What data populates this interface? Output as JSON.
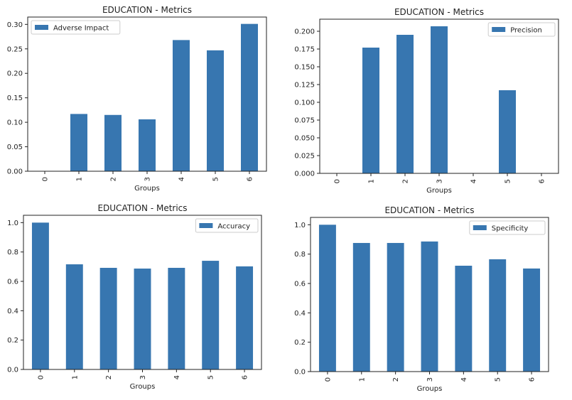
{
  "chart_data": [
    {
      "type": "bar",
      "title": "EDUCATION - Metrics",
      "xlabel": "Groups",
      "ylabel": "",
      "categories": [
        "0",
        "1",
        "2",
        "3",
        "4",
        "5",
        "6"
      ],
      "series": [
        {
          "name": "Adverse Impact",
          "values": [
            0,
            0.117,
            0.115,
            0.106,
            0.268,
            0.247,
            0.301
          ]
        }
      ],
      "ylim": [
        0,
        0.315
      ],
      "yticks": [
        "0.00",
        "0.05",
        "0.10",
        "0.15",
        "0.20",
        "0.25",
        "0.30"
      ],
      "ytick_values": [
        0,
        0.05,
        0.1,
        0.15,
        0.2,
        0.25,
        0.3
      ],
      "grid": false,
      "legend": "top-left",
      "color": "#3776b0"
    },
    {
      "type": "bar",
      "title": "EDUCATION - Metrics",
      "xlabel": "Groups",
      "ylabel": "",
      "categories": [
        "0",
        "1",
        "2",
        "3",
        "4",
        "5",
        "6"
      ],
      "series": [
        {
          "name": "Precision",
          "values": [
            0,
            0.177,
            0.195,
            0.207,
            0,
            0.117,
            0
          ]
        }
      ],
      "ylim": [
        0,
        0.217
      ],
      "yticks": [
        "0.000",
        "0.025",
        "0.050",
        "0.075",
        "0.100",
        "0.125",
        "0.150",
        "0.175",
        "0.200"
      ],
      "ytick_values": [
        0,
        0.025,
        0.05,
        0.075,
        0.1,
        0.125,
        0.15,
        0.175,
        0.2
      ],
      "grid": false,
      "legend": "top-right",
      "color": "#3776b0"
    },
    {
      "type": "bar",
      "title": "EDUCATION - Metrics",
      "xlabel": "Groups",
      "ylabel": "",
      "categories": [
        "0",
        "1",
        "2",
        "3",
        "4",
        "5",
        "6"
      ],
      "series": [
        {
          "name": "Accuracy",
          "values": [
            1.0,
            0.716,
            0.692,
            0.687,
            0.692,
            0.74,
            0.702
          ]
        }
      ],
      "ylim": [
        0,
        1.05
      ],
      "yticks": [
        "0.0",
        "0.2",
        "0.4",
        "0.6",
        "0.8",
        "1.0"
      ],
      "ytick_values": [
        0,
        0.2,
        0.4,
        0.6,
        0.8,
        1.0
      ],
      "grid": false,
      "legend": "top-right",
      "color": "#3776b0"
    },
    {
      "type": "bar",
      "title": "EDUCATION - Metrics",
      "xlabel": "Groups",
      "ylabel": "",
      "categories": [
        "0",
        "1",
        "2",
        "3",
        "4",
        "5",
        "6"
      ],
      "series": [
        {
          "name": "Specificity",
          "values": [
            1.0,
            0.876,
            0.876,
            0.886,
            0.721,
            0.765,
            0.702
          ]
        }
      ],
      "ylim": [
        0,
        1.05
      ],
      "yticks": [
        "0.0",
        "0.2",
        "0.4",
        "0.6",
        "0.8",
        "1.0"
      ],
      "ytick_values": [
        0,
        0.2,
        0.4,
        0.6,
        0.8,
        1.0
      ],
      "grid": false,
      "legend": "top-right",
      "color": "#3776b0"
    }
  ]
}
